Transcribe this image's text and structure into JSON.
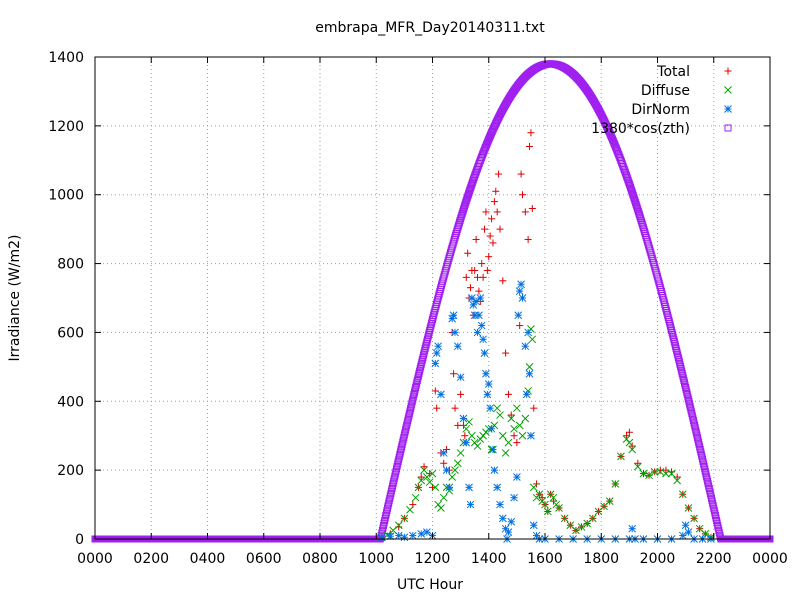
{
  "colors": {
    "total": "#e00000",
    "diffuse": "#00a000",
    "dirnorm": "#0070e0",
    "cos": "#a020f0",
    "grid": "#a0a0a0",
    "axis": "#000000"
  },
  "chart_data": {
    "type": "scatter",
    "title": "embrapa_MFR_Day20140311.txt",
    "xlabel": "UTC Hour",
    "ylabel": "Irradiance (W/m2)",
    "xlim": [
      0,
      24
    ],
    "ylim": [
      0,
      1400
    ],
    "grid": true,
    "legend_position": "top-right",
    "x_ticks": [
      {
        "v": 0,
        "label": "0000"
      },
      {
        "v": 2,
        "label": "0200"
      },
      {
        "v": 4,
        "label": "0400"
      },
      {
        "v": 6,
        "label": "0600"
      },
      {
        "v": 8,
        "label": "0800"
      },
      {
        "v": 10,
        "label": "1000"
      },
      {
        "v": 12,
        "label": "1200"
      },
      {
        "v": 14,
        "label": "1400"
      },
      {
        "v": 16,
        "label": "1600"
      },
      {
        "v": 18,
        "label": "1800"
      },
      {
        "v": 20,
        "label": "2000"
      },
      {
        "v": 22,
        "label": "2200"
      },
      {
        "v": 24,
        "label": "0000"
      }
    ],
    "y_ticks": [
      {
        "v": 0,
        "label": "0"
      },
      {
        "v": 200,
        "label": "200"
      },
      {
        "v": 400,
        "label": "400"
      },
      {
        "v": 600,
        "label": "600"
      },
      {
        "v": 800,
        "label": "800"
      },
      {
        "v": 1000,
        "label": "1000"
      },
      {
        "v": 1200,
        "label": "1200"
      },
      {
        "v": 1400,
        "label": "1400"
      }
    ],
    "series": [
      {
        "name": "Total",
        "marker": "plus",
        "color": "#e00000",
        "points": [
          [
            10.2,
            5
          ],
          [
            10.5,
            15
          ],
          [
            10.8,
            35
          ],
          [
            11.0,
            60
          ],
          [
            11.3,
            100
          ],
          [
            11.5,
            150
          ],
          [
            11.6,
            180
          ],
          [
            11.7,
            210
          ],
          [
            11.9,
            190
          ],
          [
            12.0,
            150
          ],
          [
            12.1,
            430
          ],
          [
            12.15,
            380
          ],
          [
            12.3,
            250
          ],
          [
            12.4,
            220
          ],
          [
            12.5,
            260
          ],
          [
            12.6,
            200
          ],
          [
            12.7,
            600
          ],
          [
            12.75,
            480
          ],
          [
            12.8,
            380
          ],
          [
            12.9,
            330
          ],
          [
            13.0,
            420
          ],
          [
            13.1,
            330
          ],
          [
            13.15,
            300
          ],
          [
            13.2,
            760
          ],
          [
            13.25,
            830
          ],
          [
            13.3,
            700
          ],
          [
            13.35,
            730
          ],
          [
            13.4,
            780
          ],
          [
            13.45,
            650
          ],
          [
            13.5,
            780
          ],
          [
            13.55,
            870
          ],
          [
            13.6,
            760
          ],
          [
            13.65,
            720
          ],
          [
            13.7,
            690
          ],
          [
            13.75,
            800
          ],
          [
            13.8,
            760
          ],
          [
            13.85,
            900
          ],
          [
            13.9,
            950
          ],
          [
            13.95,
            780
          ],
          [
            14.0,
            820
          ],
          [
            14.05,
            880
          ],
          [
            14.1,
            930
          ],
          [
            14.15,
            860
          ],
          [
            14.2,
            980
          ],
          [
            14.25,
            1010
          ],
          [
            14.3,
            950
          ],
          [
            14.35,
            1060
          ],
          [
            14.4,
            900
          ],
          [
            14.5,
            750
          ],
          [
            14.6,
            540
          ],
          [
            14.7,
            420
          ],
          [
            14.8,
            360
          ],
          [
            14.9,
            300
          ],
          [
            15.0,
            280
          ],
          [
            15.1,
            620
          ],
          [
            15.15,
            1060
          ],
          [
            15.2,
            1000
          ],
          [
            15.3,
            950
          ],
          [
            15.4,
            870
          ],
          [
            15.45,
            1140
          ],
          [
            15.5,
            1180
          ],
          [
            15.55,
            960
          ],
          [
            15.6,
            380
          ],
          [
            15.7,
            160
          ],
          [
            15.8,
            130
          ],
          [
            15.9,
            120
          ],
          [
            16.0,
            100
          ],
          [
            16.1,
            80
          ],
          [
            16.2,
            130
          ],
          [
            16.3,
            110
          ],
          [
            16.5,
            90
          ],
          [
            16.7,
            60
          ],
          [
            16.9,
            40
          ],
          [
            17.1,
            25
          ],
          [
            17.3,
            35
          ],
          [
            17.5,
            45
          ],
          [
            17.7,
            60
          ],
          [
            17.9,
            80
          ],
          [
            18.1,
            95
          ],
          [
            18.3,
            110
          ],
          [
            18.5,
            160
          ],
          [
            18.7,
            240
          ],
          [
            18.9,
            300
          ],
          [
            19.0,
            310
          ],
          [
            19.1,
            270
          ],
          [
            19.3,
            220
          ],
          [
            19.5,
            190
          ],
          [
            19.7,
            185
          ],
          [
            19.9,
            195
          ],
          [
            20.1,
            200
          ],
          [
            20.3,
            200
          ],
          [
            20.5,
            195
          ],
          [
            20.7,
            180
          ],
          [
            20.9,
            130
          ],
          [
            21.1,
            90
          ],
          [
            21.3,
            60
          ],
          [
            21.5,
            30
          ],
          [
            21.7,
            15
          ],
          [
            21.9,
            5
          ]
        ]
      },
      {
        "name": "Diffuse",
        "marker": "cross",
        "color": "#00a000",
        "points": [
          [
            10.2,
            5
          ],
          [
            10.4,
            12
          ],
          [
            10.6,
            25
          ],
          [
            10.8,
            40
          ],
          [
            11.0,
            60
          ],
          [
            11.2,
            85
          ],
          [
            11.4,
            120
          ],
          [
            11.5,
            150
          ],
          [
            11.6,
            170
          ],
          [
            11.7,
            200
          ],
          [
            11.8,
            180
          ],
          [
            11.9,
            165
          ],
          [
            12.0,
            190
          ],
          [
            12.1,
            150
          ],
          [
            12.2,
            100
          ],
          [
            12.3,
            90
          ],
          [
            12.4,
            120
          ],
          [
            12.5,
            150
          ],
          [
            12.6,
            140
          ],
          [
            12.7,
            180
          ],
          [
            12.8,
            200
          ],
          [
            12.9,
            220
          ],
          [
            13.0,
            250
          ],
          [
            13.1,
            280
          ],
          [
            13.2,
            320
          ],
          [
            13.3,
            340
          ],
          [
            13.4,
            300
          ],
          [
            13.5,
            280
          ],
          [
            13.6,
            270
          ],
          [
            13.7,
            290
          ],
          [
            13.8,
            300
          ],
          [
            13.9,
            310
          ],
          [
            14.0,
            320
          ],
          [
            14.1,
            260
          ],
          [
            14.2,
            330
          ],
          [
            14.3,
            380
          ],
          [
            14.4,
            360
          ],
          [
            14.5,
            300
          ],
          [
            14.6,
            250
          ],
          [
            14.7,
            280
          ],
          [
            14.8,
            350
          ],
          [
            14.9,
            320
          ],
          [
            15.0,
            380
          ],
          [
            15.1,
            330
          ],
          [
            15.2,
            300
          ],
          [
            15.3,
            350
          ],
          [
            15.4,
            430
          ],
          [
            15.45,
            500
          ],
          [
            15.5,
            610
          ],
          [
            15.55,
            580
          ],
          [
            15.6,
            150
          ],
          [
            15.7,
            120
          ],
          [
            15.8,
            130
          ],
          [
            15.9,
            110
          ],
          [
            16.0,
            100
          ],
          [
            16.1,
            80
          ],
          [
            16.2,
            130
          ],
          [
            16.3,
            120
          ],
          [
            16.4,
            100
          ],
          [
            16.5,
            90
          ],
          [
            16.7,
            60
          ],
          [
            16.9,
            40
          ],
          [
            17.1,
            25
          ],
          [
            17.3,
            35
          ],
          [
            17.5,
            45
          ],
          [
            17.7,
            60
          ],
          [
            17.9,
            80
          ],
          [
            18.1,
            95
          ],
          [
            18.3,
            110
          ],
          [
            18.5,
            160
          ],
          [
            18.7,
            240
          ],
          [
            18.9,
            290
          ],
          [
            19.0,
            280
          ],
          [
            19.1,
            260
          ],
          [
            19.3,
            210
          ],
          [
            19.5,
            190
          ],
          [
            19.7,
            185
          ],
          [
            19.9,
            195
          ],
          [
            20.1,
            195
          ],
          [
            20.3,
            190
          ],
          [
            20.5,
            190
          ],
          [
            20.7,
            170
          ],
          [
            20.9,
            130
          ],
          [
            21.1,
            90
          ],
          [
            21.3,
            60
          ],
          [
            21.5,
            30
          ],
          [
            21.7,
            15
          ],
          [
            21.9,
            5
          ]
        ]
      },
      {
        "name": "DirNorm",
        "marker": "star",
        "color": "#0070e0",
        "points": [
          [
            10.2,
            5
          ],
          [
            10.5,
            8
          ],
          [
            10.8,
            10
          ],
          [
            11.0,
            5
          ],
          [
            11.3,
            10
          ],
          [
            11.6,
            15
          ],
          [
            11.8,
            20
          ],
          [
            12.0,
            10
          ],
          [
            12.1,
            510
          ],
          [
            12.15,
            540
          ],
          [
            12.2,
            560
          ],
          [
            12.3,
            420
          ],
          [
            12.4,
            250
          ],
          [
            12.5,
            200
          ],
          [
            12.6,
            150
          ],
          [
            12.7,
            640
          ],
          [
            12.75,
            650
          ],
          [
            12.8,
            600
          ],
          [
            12.9,
            560
          ],
          [
            13.0,
            470
          ],
          [
            13.1,
            350
          ],
          [
            13.2,
            280
          ],
          [
            13.3,
            150
          ],
          [
            13.35,
            100
          ],
          [
            13.4,
            700
          ],
          [
            13.45,
            680
          ],
          [
            13.5,
            650
          ],
          [
            13.55,
            690
          ],
          [
            13.6,
            600
          ],
          [
            13.65,
            650
          ],
          [
            13.7,
            700
          ],
          [
            13.75,
            620
          ],
          [
            13.8,
            580
          ],
          [
            13.85,
            540
          ],
          [
            13.9,
            480
          ],
          [
            13.95,
            420
          ],
          [
            14.0,
            450
          ],
          [
            14.05,
            380
          ],
          [
            14.1,
            320
          ],
          [
            14.15,
            260
          ],
          [
            14.2,
            200
          ],
          [
            14.3,
            150
          ],
          [
            14.4,
            100
          ],
          [
            14.5,
            60
          ],
          [
            14.6,
            30
          ],
          [
            14.65,
            0
          ],
          [
            14.7,
            20
          ],
          [
            14.8,
            50
          ],
          [
            14.9,
            120
          ],
          [
            15.0,
            180
          ],
          [
            15.05,
            650
          ],
          [
            15.1,
            720
          ],
          [
            15.15,
            740
          ],
          [
            15.2,
            700
          ],
          [
            15.3,
            560
          ],
          [
            15.35,
            420
          ],
          [
            15.4,
            600
          ],
          [
            15.45,
            480
          ],
          [
            15.5,
            300
          ],
          [
            15.6,
            40
          ],
          [
            15.7,
            10
          ],
          [
            15.8,
            0
          ],
          [
            16.0,
            0
          ],
          [
            16.5,
            0
          ],
          [
            17.0,
            0
          ],
          [
            17.5,
            0
          ],
          [
            18.0,
            0
          ],
          [
            18.5,
            0
          ],
          [
            19.0,
            0
          ],
          [
            19.1,
            30
          ],
          [
            19.2,
            0
          ],
          [
            19.5,
            0
          ],
          [
            20.0,
            0
          ],
          [
            20.5,
            0
          ],
          [
            20.9,
            10
          ],
          [
            21.0,
            40
          ],
          [
            21.1,
            20
          ],
          [
            21.3,
            0
          ],
          [
            21.6,
            0
          ],
          [
            21.9,
            0
          ]
        ]
      },
      {
        "name": "1380*cos(zth)",
        "marker": "square",
        "color": "#a020f0",
        "amplitude": 1380,
        "sunrise": 10.15,
        "noon": 16.2,
        "sunset": 22.25,
        "sample_step": 0.02
      }
    ]
  }
}
